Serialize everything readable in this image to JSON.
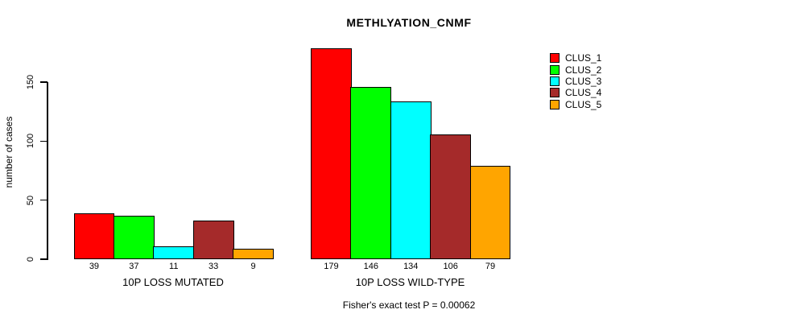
{
  "title": "METHLYATION_CNMF",
  "y_axis": {
    "label": "number of cases",
    "ticks": [
      0,
      50,
      100,
      150
    ]
  },
  "footer": "Fisher's exact test P = 0.00062",
  "legend": {
    "items": [
      {
        "label": "CLUS_1",
        "color": "#ff0000"
      },
      {
        "label": "CLUS_2",
        "color": "#00ff00"
      },
      {
        "label": "CLUS_3",
        "color": "#00ffff"
      },
      {
        "label": "CLUS_4",
        "color": "#a52a2a"
      },
      {
        "label": "CLUS_5",
        "color": "#ffa500"
      }
    ]
  },
  "chart_data": {
    "type": "bar",
    "title": "METHLYATION_CNMF",
    "xlabel": "",
    "ylabel": "number of cases",
    "yticks": [
      0,
      50,
      100,
      150
    ],
    "ylim": [
      0,
      182
    ],
    "grid": false,
    "legend_position": "top-right",
    "series_names": [
      "CLUS_1",
      "CLUS_2",
      "CLUS_3",
      "CLUS_4",
      "CLUS_5"
    ],
    "series_colors": [
      "#ff0000",
      "#00ff00",
      "#00ffff",
      "#a52a2a",
      "#ffa500"
    ],
    "groups": [
      {
        "label": "10P LOSS MUTATED",
        "values": [
          39,
          37,
          11,
          33,
          9
        ]
      },
      {
        "label": "10P LOSS WILD-TYPE",
        "values": [
          179,
          146,
          134,
          106,
          79
        ]
      }
    ],
    "bar_value_labels_shown": true,
    "annotation": "Fisher's exact test P = 0.00062"
  }
}
